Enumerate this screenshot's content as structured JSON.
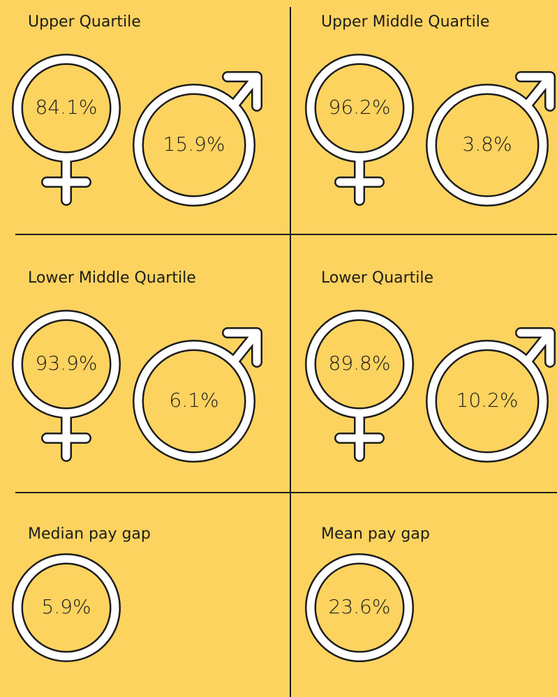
{
  "panels": [
    {
      "title": "Upper Quartile",
      "female": "84.1%",
      "male": "15.9%"
    },
    {
      "title": "Upper Middle Quartile",
      "female": "96.2%",
      "male": "3.8%"
    },
    {
      "title": "Lower Middle Quartile",
      "female": "93.9%",
      "male": "6.1%"
    },
    {
      "title": "Lower Quartile",
      "female": "89.8%",
      "male": "10.2%"
    },
    {
      "title": "Median pay gap",
      "value": "5.9%"
    },
    {
      "title": "Mean pay gap",
      "value": "23.6%"
    }
  ]
}
